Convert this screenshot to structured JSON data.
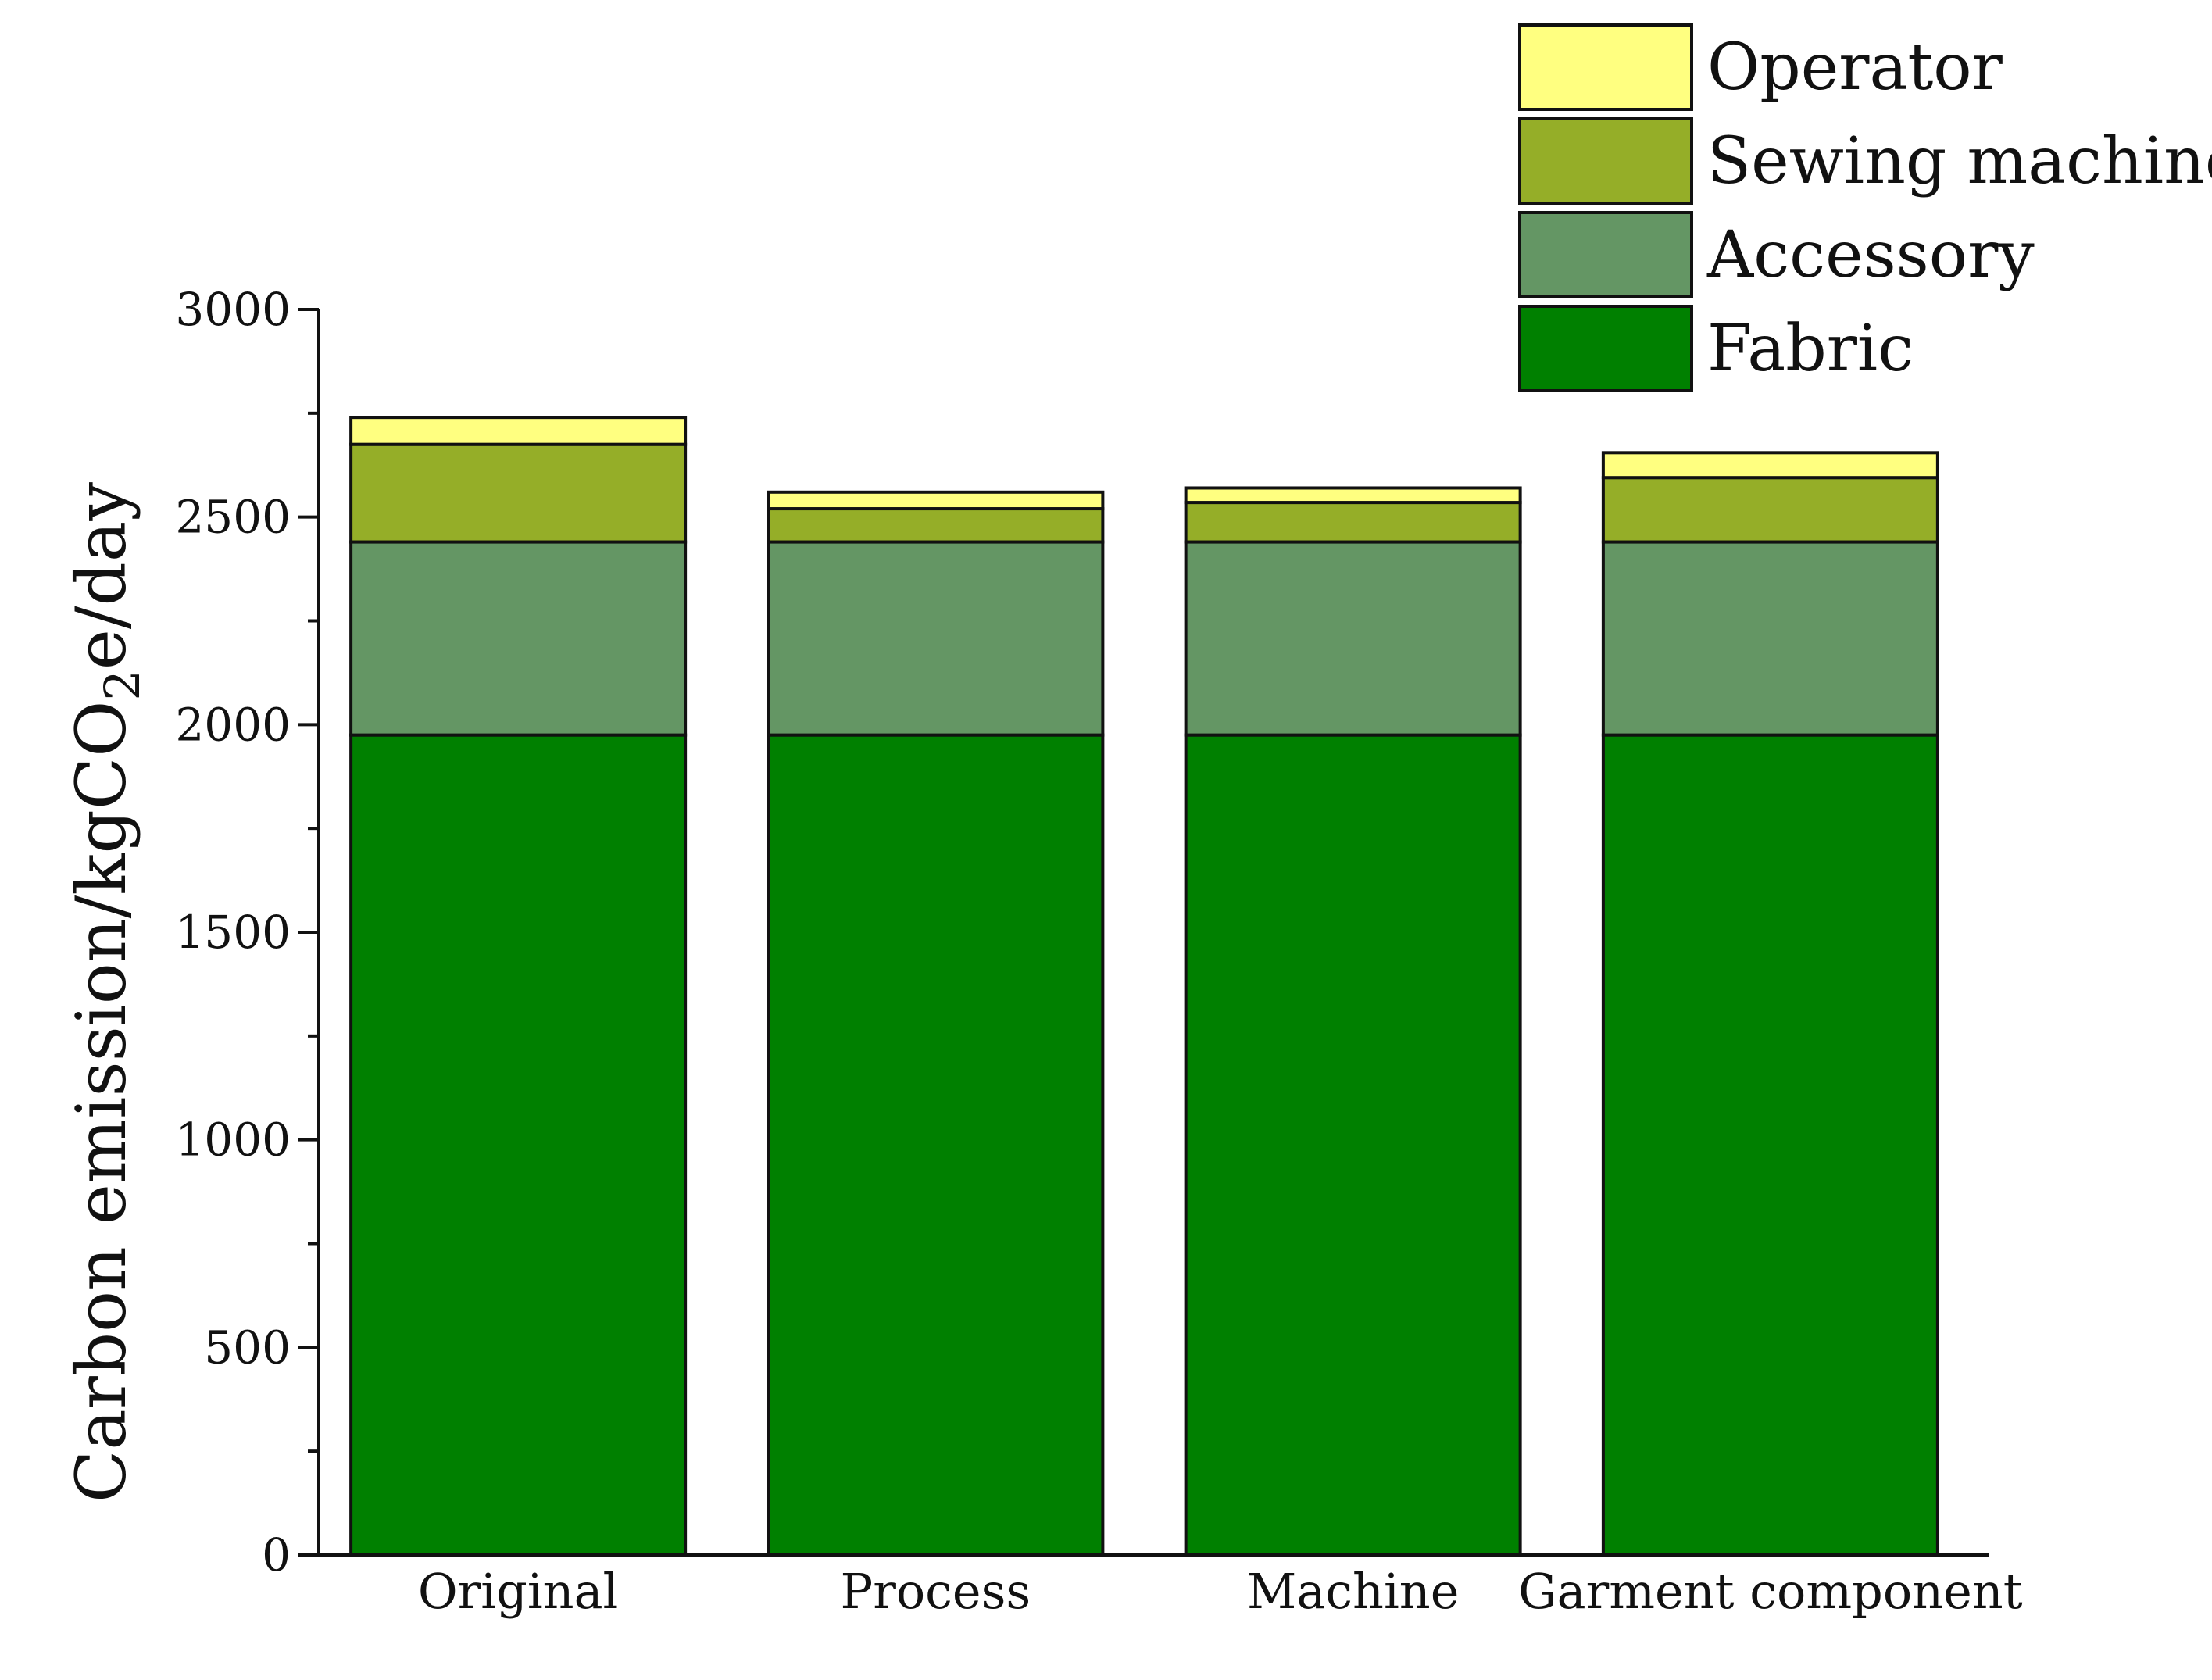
{
  "chart_data": {
    "type": "bar",
    "stacked": true,
    "categories": [
      "Original",
      "Process",
      "Machine",
      "Garment component"
    ],
    "series": [
      {
        "name": "Fabric",
        "color": "#008000",
        "values": [
          1975,
          1975,
          1975,
          1975
        ]
      },
      {
        "name": "Accessory",
        "color": "#649664",
        "values": [
          465,
          465,
          465,
          465
        ]
      },
      {
        "name": "Sewing machine",
        "color": "#95AE28",
        "values": [
          235,
          80,
          95,
          155
        ]
      },
      {
        "name": "Operator",
        "color": "#FFFF80",
        "values": [
          65,
          40,
          35,
          60
        ]
      }
    ],
    "ylabel_main": "Carbon emission/kgCO",
    "ylabel_sub": "2",
    "ylabel_tail": "e/day",
    "ylim": [
      0,
      3000
    ],
    "yticks": [
      0,
      500,
      1000,
      1500,
      2000,
      2500,
      3000
    ],
    "grid": false,
    "legend_position": "top-right",
    "legend_order": [
      "Operator",
      "Sewing machine",
      "Accessory",
      "Fabric"
    ]
  }
}
